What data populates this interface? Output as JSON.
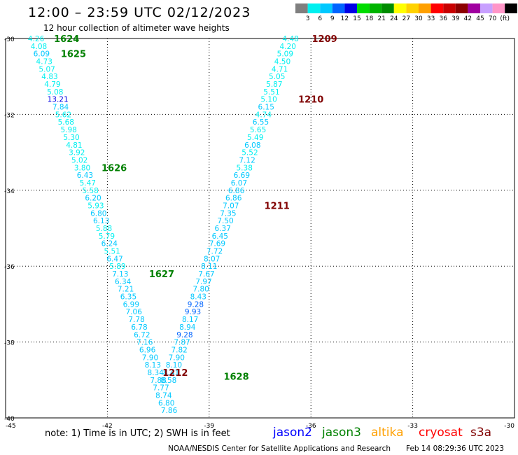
{
  "header": {
    "title": "12:00 – 23:59 UTC 02/12/2023",
    "subtitle": "12 hour collection of altimeter wave heights"
  },
  "colorbar": {
    "labels": [
      "3",
      "6",
      "9",
      "12",
      "15",
      "18",
      "21",
      "24",
      "27",
      "30",
      "33",
      "36",
      "39",
      "42",
      "45",
      "70",
      "(ft)"
    ],
    "colors": [
      "#7f7f7f",
      "#00f0f0",
      "#00c8ff",
      "#0064ff",
      "#0000e6",
      "#00dc00",
      "#00b400",
      "#008c00",
      "#ffff00",
      "#ffd200",
      "#ffa000",
      "#ff0000",
      "#c80000",
      "#8c0000",
      "#a000a0",
      "#c8a0ff",
      "#ff96c8",
      "#000000"
    ]
  },
  "map": {
    "lat_ticks": [
      "-30",
      "-32",
      "-34",
      "-36",
      "-38",
      "-40"
    ],
    "lon_ticks": [
      "-45",
      "-42",
      "-39",
      "-36",
      "-33",
      "-30"
    ]
  },
  "passes": [
    {
      "label": "jason3 tracks",
      "color": "#008000",
      "points": [
        {
          "lat": -30.0,
          "lon": -44.1,
          "v": "4.26"
        },
        {
          "lat": -30.2,
          "lon": -44.02,
          "v": "4.08"
        },
        {
          "lat": -30.4,
          "lon": -43.94,
          "v": "6.09"
        },
        {
          "lat": -30.6,
          "lon": -43.86,
          "v": "4.73"
        },
        {
          "lat": -30.8,
          "lon": -43.78,
          "v": "5.07"
        },
        {
          "lat": -31.0,
          "lon": -43.7,
          "v": "4.83"
        },
        {
          "lat": -31.2,
          "lon": -43.62,
          "v": "4.79"
        },
        {
          "lat": -31.4,
          "lon": -43.54,
          "v": "5.08"
        },
        {
          "lat": -31.6,
          "lon": -43.46,
          "v": "13.21"
        },
        {
          "lat": -31.8,
          "lon": -43.38,
          "v": "7.84"
        },
        {
          "lat": -32.0,
          "lon": -43.3,
          "v": "5.62"
        },
        {
          "lat": -32.2,
          "lon": -43.22,
          "v": "5.68"
        },
        {
          "lat": -32.4,
          "lon": -43.14,
          "v": "5.98"
        },
        {
          "lat": -32.6,
          "lon": -43.06,
          "v": "5.30"
        },
        {
          "lat": -32.8,
          "lon": -42.98,
          "v": "4.81"
        },
        {
          "lat": -33.0,
          "lon": -42.9,
          "v": "3.92"
        },
        {
          "lat": -33.2,
          "lon": -42.82,
          "v": "5.02"
        },
        {
          "lat": -33.4,
          "lon": -42.74,
          "v": "3.80"
        },
        {
          "lat": -33.6,
          "lon": -42.66,
          "v": "6.43"
        },
        {
          "lat": -33.8,
          "lon": -42.58,
          "v": "5.47"
        },
        {
          "lat": -34.0,
          "lon": -42.5,
          "v": "5.58"
        },
        {
          "lat": -34.2,
          "lon": -42.42,
          "v": "6.20"
        },
        {
          "lat": -34.4,
          "lon": -42.34,
          "v": "5.93"
        },
        {
          "lat": -34.6,
          "lon": -42.26,
          "v": "6.80"
        },
        {
          "lat": -34.8,
          "lon": -42.18,
          "v": "6.13"
        },
        {
          "lat": -35.0,
          "lon": -42.1,
          "v": "5.88"
        },
        {
          "lat": -35.2,
          "lon": -42.02,
          "v": "5.79"
        },
        {
          "lat": -35.4,
          "lon": -41.94,
          "v": "6.24"
        },
        {
          "lat": -35.6,
          "lon": -41.86,
          "v": "5.51"
        },
        {
          "lat": -35.8,
          "lon": -41.78,
          "v": "6.47"
        },
        {
          "lat": -36.0,
          "lon": -41.7,
          "v": "5.89"
        },
        {
          "lat": -36.2,
          "lon": -41.62,
          "v": "7.13"
        },
        {
          "lat": -36.4,
          "lon": -41.54,
          "v": "6.34"
        },
        {
          "lat": -36.6,
          "lon": -41.46,
          "v": "7.21"
        },
        {
          "lat": -36.8,
          "lon": -41.38,
          "v": "6.35"
        },
        {
          "lat": -37.0,
          "lon": -41.3,
          "v": "6.99"
        },
        {
          "lat": -37.2,
          "lon": -41.22,
          "v": "7.06"
        },
        {
          "lat": -37.4,
          "lon": -41.14,
          "v": "7.78"
        },
        {
          "lat": -37.6,
          "lon": -41.06,
          "v": "6.78"
        },
        {
          "lat": -37.8,
          "lon": -40.98,
          "v": "6.72"
        },
        {
          "lat": -38.0,
          "lon": -40.9,
          "v": "7.16"
        },
        {
          "lat": -38.2,
          "lon": -40.82,
          "v": "6.96"
        },
        {
          "lat": -38.4,
          "lon": -40.74,
          "v": "7.90"
        },
        {
          "lat": -38.6,
          "lon": -40.66,
          "v": "8.13"
        },
        {
          "lat": -38.8,
          "lon": -40.58,
          "v": "8.34"
        },
        {
          "lat": -39.0,
          "lon": -40.5,
          "v": "7.88"
        },
        {
          "lat": -39.2,
          "lon": -40.42,
          "v": "7.77"
        },
        {
          "lat": -39.4,
          "lon": -40.34,
          "v": "8.74"
        },
        {
          "lat": -39.6,
          "lon": -40.26,
          "v": "6.80"
        },
        {
          "lat": -39.8,
          "lon": -40.18,
          "v": "7.86"
        }
      ]
    },
    {
      "label": "s3a tracks",
      "color": "#800000",
      "points": [
        {
          "lat": -30.0,
          "lon": -36.6,
          "v": "4.48"
        },
        {
          "lat": -30.2,
          "lon": -36.68,
          "v": "4.20"
        },
        {
          "lat": -30.4,
          "lon": -36.76,
          "v": "5.09"
        },
        {
          "lat": -30.6,
          "lon": -36.84,
          "v": "4.50"
        },
        {
          "lat": -30.8,
          "lon": -36.92,
          "v": "4.71"
        },
        {
          "lat": -31.0,
          "lon": -37.0,
          "v": "5.05"
        },
        {
          "lat": -31.2,
          "lon": -37.08,
          "v": "5.87"
        },
        {
          "lat": -31.4,
          "lon": -37.16,
          "v": "5.51"
        },
        {
          "lat": -31.6,
          "lon": -37.24,
          "v": "5.10"
        },
        {
          "lat": -31.8,
          "lon": -37.32,
          "v": "6.15"
        },
        {
          "lat": -32.0,
          "lon": -37.4,
          "v": "4.74"
        },
        {
          "lat": -32.2,
          "lon": -37.48,
          "v": "6.55"
        },
        {
          "lat": -32.4,
          "lon": -37.56,
          "v": "5.65"
        },
        {
          "lat": -32.6,
          "lon": -37.64,
          "v": "5.49"
        },
        {
          "lat": -32.8,
          "lon": -37.72,
          "v": "6.08"
        },
        {
          "lat": -33.0,
          "lon": -37.8,
          "v": "5.52"
        },
        {
          "lat": -33.2,
          "lon": -37.88,
          "v": "7.12"
        },
        {
          "lat": -33.4,
          "lon": -37.96,
          "v": "5.38"
        },
        {
          "lat": -33.6,
          "lon": -38.04,
          "v": "6.69"
        },
        {
          "lat": -33.8,
          "lon": -38.12,
          "v": "6.07"
        },
        {
          "lat": -34.0,
          "lon": -38.2,
          "v": "6.86"
        },
        {
          "lat": -34.2,
          "lon": -38.28,
          "v": "6.86"
        },
        {
          "lat": -34.4,
          "lon": -38.36,
          "v": "7.07"
        },
        {
          "lat": -34.6,
          "lon": -38.44,
          "v": "7.35"
        },
        {
          "lat": -34.8,
          "lon": -38.52,
          "v": "7.50"
        },
        {
          "lat": -35.0,
          "lon": -38.6,
          "v": "6.37"
        },
        {
          "lat": -35.2,
          "lon": -38.68,
          "v": "6.45"
        },
        {
          "lat": -35.4,
          "lon": -38.76,
          "v": "7.69"
        },
        {
          "lat": -35.6,
          "lon": -38.84,
          "v": "7.72"
        },
        {
          "lat": -35.8,
          "lon": -38.92,
          "v": "8.07"
        },
        {
          "lat": -36.0,
          "lon": -39.0,
          "v": "8.11"
        },
        {
          "lat": -36.2,
          "lon": -39.08,
          "v": "7.67"
        },
        {
          "lat": -36.4,
          "lon": -39.16,
          "v": "7.97"
        },
        {
          "lat": -36.6,
          "lon": -39.24,
          "v": "7.80"
        },
        {
          "lat": -36.8,
          "lon": -39.32,
          "v": "8.43"
        },
        {
          "lat": -37.0,
          "lon": -39.4,
          "v": "9.28"
        },
        {
          "lat": -37.2,
          "lon": -39.48,
          "v": "9.93"
        },
        {
          "lat": -37.4,
          "lon": -39.56,
          "v": "8.17"
        },
        {
          "lat": -37.6,
          "lon": -39.64,
          "v": "8.94"
        },
        {
          "lat": -37.8,
          "lon": -39.72,
          "v": "9.28"
        },
        {
          "lat": -38.0,
          "lon": -39.8,
          "v": "7.87"
        },
        {
          "lat": -38.2,
          "lon": -39.88,
          "v": "7.82"
        },
        {
          "lat": -38.4,
          "lon": -39.96,
          "v": "7.90"
        },
        {
          "lat": -38.6,
          "lon": -40.04,
          "v": "8.10"
        },
        {
          "lat": -38.8,
          "lon": -40.12,
          "v": "8.41"
        },
        {
          "lat": -39.0,
          "lon": -40.2,
          "v": "8.58"
        }
      ]
    }
  ],
  "time_labels": [
    {
      "text": "1624",
      "lat": -30.0,
      "lon": -43.2,
      "color": "#008000"
    },
    {
      "text": "1625",
      "lat": -30.4,
      "lon": -43.0,
      "color": "#008000"
    },
    {
      "text": "1626",
      "lat": -33.4,
      "lon": -41.8,
      "color": "#008000"
    },
    {
      "text": "1627",
      "lat": -36.2,
      "lon": -40.4,
      "color": "#008000"
    },
    {
      "text": "1628",
      "lat": -38.9,
      "lon": -38.2,
      "color": "#008000"
    },
    {
      "text": "1209",
      "lat": -30.0,
      "lon": -35.6,
      "color": "#800000"
    },
    {
      "text": "1210",
      "lat": -31.6,
      "lon": -36.0,
      "color": "#800000"
    },
    {
      "text": "1211",
      "lat": -34.4,
      "lon": -37.0,
      "color": "#800000"
    },
    {
      "text": "1212",
      "lat": -38.8,
      "lon": -40.0,
      "color": "#800000"
    }
  ],
  "footer": {
    "note": "note:  1) Time is in UTC;  2) SWH is in feet",
    "satellites": [
      {
        "name": "jason2",
        "color": "#0000ff"
      },
      {
        "name": "jason3",
        "color": "#008000"
      },
      {
        "name": "altika",
        "color": "#ffa000"
      },
      {
        "name": "cryosat",
        "color": "#ff0000"
      },
      {
        "name": "s3a",
        "color": "#800000"
      }
    ],
    "credit": "NOAA/NESDIS Center for Satellite Applications and Research",
    "timestamp": "Feb 14 08:29:36 UTC 2023"
  }
}
